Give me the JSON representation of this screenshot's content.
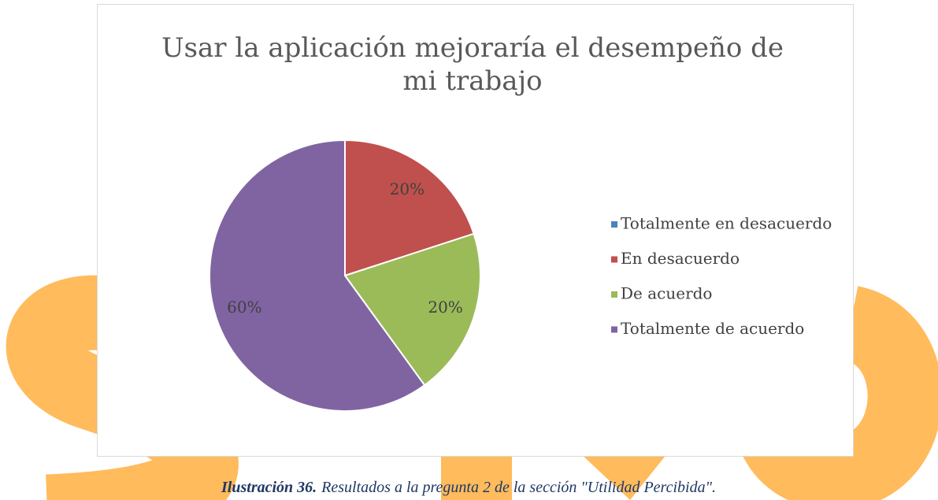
{
  "chart_data": {
    "type": "pie",
    "title": "Usar la aplicación mejoraría el desempeño de mi trabajo",
    "categories": [
      "Totalmente en desacuerdo",
      "En desacuerdo",
      "De acuerdo",
      "Totalmente de acuerdo"
    ],
    "values": [
      0,
      20,
      20,
      60
    ],
    "value_labels": [
      null,
      "20%",
      "20%",
      "60%"
    ],
    "colors": [
      "#4f81bd",
      "#c0504d",
      "#9bbb59",
      "#8064a2"
    ],
    "legend": "right"
  },
  "caption": {
    "label": "Ilustración 36.",
    "text": "Resultados a la pregunta 2 de la sección \"Utilidad Percibida\"."
  }
}
